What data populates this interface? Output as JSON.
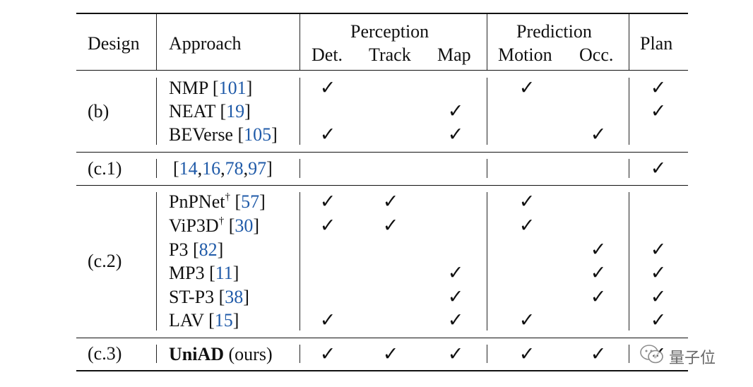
{
  "table": {
    "header": {
      "design": "Design",
      "approach": "Approach",
      "perception": "Perception",
      "prediction": "Prediction",
      "plan": "Plan",
      "det": "Det.",
      "track": "Track",
      "map": "Map",
      "motion": "Motion",
      "occ": "Occ."
    },
    "check_symbol": "✓",
    "groups": [
      {
        "design": "(b)",
        "rows": [
          {
            "name": "NMP",
            "sup": "",
            "bold": false,
            "refs": [
              "101"
            ],
            "checks": [
              true,
              false,
              false,
              true,
              false,
              true
            ]
          },
          {
            "name": "NEAT",
            "sup": "",
            "bold": false,
            "refs": [
              "19"
            ],
            "checks": [
              false,
              false,
              true,
              false,
              false,
              true
            ]
          },
          {
            "name": "BEVerse",
            "sup": "",
            "bold": false,
            "refs": [
              "105"
            ],
            "checks": [
              true,
              false,
              true,
              false,
              true,
              false
            ]
          }
        ]
      },
      {
        "design": "(c.1)",
        "rows": [
          {
            "name": "",
            "sup": "",
            "bold": false,
            "refs": [
              "14",
              "16",
              "78",
              "97"
            ],
            "checks": [
              false,
              false,
              false,
              false,
              false,
              true
            ]
          }
        ]
      },
      {
        "design": "(c.2)",
        "rows": [
          {
            "name": "PnPNet",
            "sup": "†",
            "bold": false,
            "refs": [
              "57"
            ],
            "checks": [
              true,
              true,
              false,
              true,
              false,
              false
            ]
          },
          {
            "name": "ViP3D",
            "sup": "†",
            "bold": false,
            "refs": [
              "30"
            ],
            "checks": [
              true,
              true,
              false,
              true,
              false,
              false
            ]
          },
          {
            "name": "P3",
            "sup": "",
            "bold": false,
            "refs": [
              "82"
            ],
            "checks": [
              false,
              false,
              false,
              false,
              true,
              true
            ]
          },
          {
            "name": "MP3",
            "sup": "",
            "bold": false,
            "refs": [
              "11"
            ],
            "checks": [
              false,
              false,
              true,
              false,
              true,
              true
            ]
          },
          {
            "name": "ST-P3",
            "sup": "",
            "bold": false,
            "refs": [
              "38"
            ],
            "checks": [
              false,
              false,
              true,
              false,
              true,
              true
            ]
          },
          {
            "name": "LAV",
            "sup": "",
            "bold": false,
            "refs": [
              "15"
            ],
            "checks": [
              true,
              false,
              true,
              true,
              false,
              true
            ]
          }
        ]
      },
      {
        "design": "(c.3)",
        "rows": [
          {
            "name": "UniAD",
            "suffix": "(ours)",
            "sup": "",
            "bold": true,
            "refs": [],
            "checks": [
              true,
              true,
              true,
              true,
              true,
              true
            ]
          }
        ]
      }
    ]
  },
  "watermark": {
    "text": "量子位",
    "icon": "wechat-icon"
  }
}
